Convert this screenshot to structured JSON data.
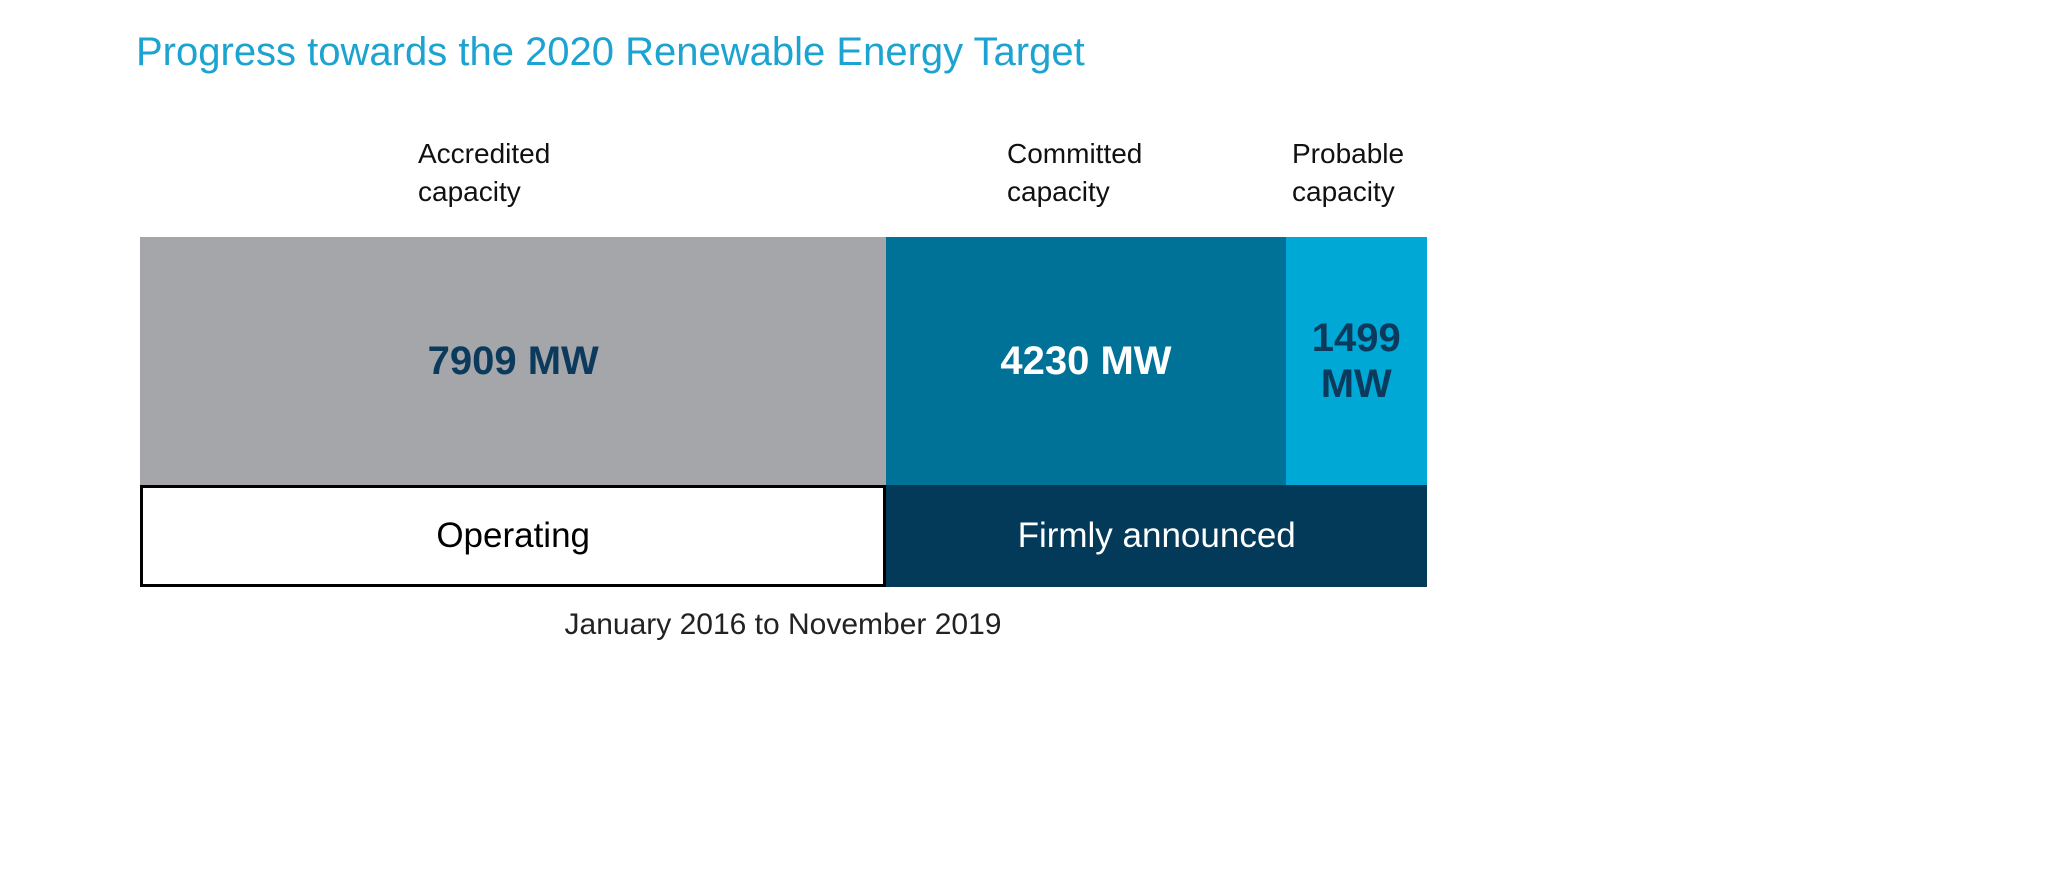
{
  "chart_data": {
    "type": "bar",
    "title": "Progress towards the 2020 Renewable Energy Target",
    "orientation": "horizontal-stacked",
    "unit": "MW",
    "segments": [
      {
        "name": "Accredited capacity",
        "value": 7909,
        "label": "7909 MW",
        "color": "#a5a6a9",
        "label_color": "#0b3a5c",
        "group": "Operating"
      },
      {
        "name": "Committed capacity",
        "value": 4230,
        "label": "4230 MW",
        "color": "#007297",
        "label_color": "#ffffff",
        "group": "Firmly announced"
      },
      {
        "name": "Probable capacity",
        "value": 1499,
        "label": "1499 MW",
        "color": "#00a8d5",
        "label_color": "#0b3a5c",
        "group": "Firmly announced"
      }
    ],
    "groups": [
      {
        "name": "Operating",
        "color": "#ffffff",
        "text_color": "#000000"
      },
      {
        "name": "Firmly announced",
        "color": "#033a5a",
        "text_color": "#ffffff"
      }
    ],
    "footer": "January 2016 to November 2019"
  }
}
